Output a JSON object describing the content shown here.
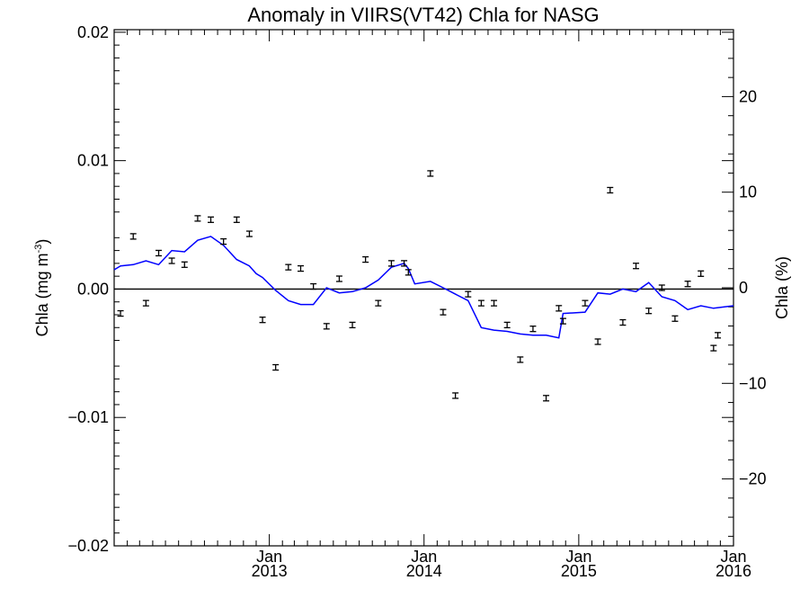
{
  "chart_data": {
    "type": "line",
    "title": "Anomaly in VIIRS(VT42) Chla for NASG",
    "ylabel_left_main": "Chla (mg m",
    "ylabel_left_exp": "-3",
    "ylabel_left_close": ")",
    "ylabel_right": "Chla (%)",
    "x_ticks": [
      {
        "date": "2013-01-01",
        "month": "Jan",
        "year": "2013"
      },
      {
        "date": "2014-01-01",
        "month": "Jan",
        "year": "2014"
      },
      {
        "date": "2015-01-01",
        "month": "Jan",
        "year": "2015"
      },
      {
        "date": "2016-01-01",
        "month": "Jan",
        "year": "2016"
      }
    ],
    "xlim": [
      "2012-01-01",
      "2016-01-01"
    ],
    "ylim_left": [
      -0.02,
      0.0202
    ],
    "ylim_right": [
      -27,
      27
    ],
    "y_ticks_left": [
      {
        "value": 0.02,
        "label": "0.02"
      },
      {
        "value": 0.01,
        "label": "0.01"
      },
      {
        "value": 0.0,
        "label": "0.00"
      },
      {
        "value": -0.01,
        "label": "-0.01"
      },
      {
        "value": -0.02,
        "label": "-0.02"
      }
    ],
    "y_ticks_right": [
      {
        "value": 20,
        "label": "20"
      },
      {
        "value": 10,
        "label": "10"
      },
      {
        "value": 0,
        "label": "0"
      },
      {
        "value": -10,
        "label": "-10"
      },
      {
        "value": -20,
        "label": "-20"
      }
    ],
    "zero_line": true,
    "colors": {
      "line": "#0000ff",
      "points": "#000000",
      "axes": "#000000"
    },
    "series": [
      {
        "role": "monthly anomaly (error-bar markers)",
        "points": [
          {
            "x": "2012-01-16",
            "y": -0.0019
          },
          {
            "x": "2012-02-15",
            "y": 0.0041
          },
          {
            "x": "2012-03-16",
            "y": -0.0011
          },
          {
            "x": "2012-04-15",
            "y": 0.0028
          },
          {
            "x": "2012-05-16",
            "y": 0.0022
          },
          {
            "x": "2012-06-15",
            "y": 0.0019
          },
          {
            "x": "2012-07-16",
            "y": 0.0055
          },
          {
            "x": "2012-08-16",
            "y": 0.0054
          },
          {
            "x": "2012-09-15",
            "y": 0.0037
          },
          {
            "x": "2012-10-16",
            "y": 0.0054
          },
          {
            "x": "2012-11-15",
            "y": 0.0043
          },
          {
            "x": "2012-12-16",
            "y": -0.0024
          },
          {
            "x": "2013-01-16",
            "y": -0.0061
          },
          {
            "x": "2013-02-15",
            "y": 0.0017
          },
          {
            "x": "2013-03-16",
            "y": 0.0016
          },
          {
            "x": "2013-04-15",
            "y": 0.0002
          },
          {
            "x": "2013-05-16",
            "y": -0.0029
          },
          {
            "x": "2013-06-15",
            "y": 0.0008
          },
          {
            "x": "2013-07-16",
            "y": -0.0028
          },
          {
            "x": "2013-08-16",
            "y": 0.0023
          },
          {
            "x": "2013-09-15",
            "y": -0.0011
          },
          {
            "x": "2013-10-16",
            "y": 0.002
          },
          {
            "x": "2013-11-15",
            "y": 0.002
          },
          {
            "x": "2013-11-25",
            "y": 0.0013
          },
          {
            "x": "2014-01-16",
            "y": 0.009
          },
          {
            "x": "2014-02-15",
            "y": -0.0018
          },
          {
            "x": "2014-03-16",
            "y": -0.0083
          },
          {
            "x": "2014-04-15",
            "y": -0.0004
          },
          {
            "x": "2014-05-16",
            "y": -0.0011
          },
          {
            "x": "2014-06-15",
            "y": -0.0011
          },
          {
            "x": "2014-07-16",
            "y": -0.0028
          },
          {
            "x": "2014-08-16",
            "y": -0.0055
          },
          {
            "x": "2014-09-15",
            "y": -0.0031
          },
          {
            "x": "2014-10-16",
            "y": -0.0085
          },
          {
            "x": "2014-11-15",
            "y": -0.0015
          },
          {
            "x": "2014-11-25",
            "y": -0.0025
          },
          {
            "x": "2015-01-16",
            "y": -0.0011
          },
          {
            "x": "2015-02-15",
            "y": -0.0041
          },
          {
            "x": "2015-03-16",
            "y": 0.0077
          },
          {
            "x": "2015-04-15",
            "y": -0.0026
          },
          {
            "x": "2015-05-16",
            "y": 0.0018
          },
          {
            "x": "2015-06-15",
            "y": -0.0017
          },
          {
            "x": "2015-07-16",
            "y": 0.0001
          },
          {
            "x": "2015-08-16",
            "y": -0.0023
          },
          {
            "x": "2015-09-15",
            "y": 0.0004
          },
          {
            "x": "2015-10-16",
            "y": 0.0012
          },
          {
            "x": "2015-11-15",
            "y": -0.0046
          },
          {
            "x": "2015-11-25",
            "y": -0.0036
          }
        ]
      },
      {
        "role": "running mean (blue line)",
        "points": [
          {
            "x": "2012-01-01",
            "y": 0.0015
          },
          {
            "x": "2012-01-16",
            "y": 0.0018
          },
          {
            "x": "2012-02-15",
            "y": 0.0019
          },
          {
            "x": "2012-03-16",
            "y": 0.0022
          },
          {
            "x": "2012-04-15",
            "y": 0.0019
          },
          {
            "x": "2012-05-16",
            "y": 0.003
          },
          {
            "x": "2012-06-15",
            "y": 0.0029
          },
          {
            "x": "2012-07-16",
            "y": 0.0038
          },
          {
            "x": "2012-08-16",
            "y": 0.0041
          },
          {
            "x": "2012-09-15",
            "y": 0.0034
          },
          {
            "x": "2012-10-16",
            "y": 0.0023
          },
          {
            "x": "2012-11-15",
            "y": 0.0018
          },
          {
            "x": "2012-12-01",
            "y": 0.0012
          },
          {
            "x": "2012-12-16",
            "y": 0.0009
          },
          {
            "x": "2013-01-16",
            "y": -0.0001
          },
          {
            "x": "2013-02-15",
            "y": -0.0009
          },
          {
            "x": "2013-03-16",
            "y": -0.0012
          },
          {
            "x": "2013-04-15",
            "y": -0.0012
          },
          {
            "x": "2013-05-16",
            "y": 0.0001
          },
          {
            "x": "2013-06-15",
            "y": -0.0003
          },
          {
            "x": "2013-07-16",
            "y": -0.0002
          },
          {
            "x": "2013-08-16",
            "y": 0.0001
          },
          {
            "x": "2013-09-15",
            "y": 0.0007
          },
          {
            "x": "2013-10-16",
            "y": 0.0017
          },
          {
            "x": "2013-11-15",
            "y": 0.002
          },
          {
            "x": "2013-11-25",
            "y": 0.0016
          },
          {
            "x": "2013-12-10",
            "y": 0.0004
          },
          {
            "x": "2014-01-16",
            "y": 0.0006
          },
          {
            "x": "2014-02-15",
            "y": 0.0001
          },
          {
            "x": "2014-03-16",
            "y": -0.0004
          },
          {
            "x": "2014-04-15",
            "y": -0.0009
          },
          {
            "x": "2014-05-16",
            "y": -0.003
          },
          {
            "x": "2014-06-15",
            "y": -0.0032
          },
          {
            "x": "2014-07-16",
            "y": -0.0033
          },
          {
            "x": "2014-08-16",
            "y": -0.0035
          },
          {
            "x": "2014-09-15",
            "y": -0.0036
          },
          {
            "x": "2014-10-16",
            "y": -0.0036
          },
          {
            "x": "2014-11-15",
            "y": -0.0038
          },
          {
            "x": "2014-11-25",
            "y": -0.0019
          },
          {
            "x": "2015-01-16",
            "y": -0.0018
          },
          {
            "x": "2015-02-15",
            "y": -0.0003
          },
          {
            "x": "2015-03-16",
            "y": -0.0004
          },
          {
            "x": "2015-04-15",
            "y": 0.0
          },
          {
            "x": "2015-05-16",
            "y": -0.0002
          },
          {
            "x": "2015-06-15",
            "y": 0.0005
          },
          {
            "x": "2015-07-16",
            "y": -0.0006
          },
          {
            "x": "2015-08-16",
            "y": -0.0009
          },
          {
            "x": "2015-09-15",
            "y": -0.0016
          },
          {
            "x": "2015-10-16",
            "y": -0.0013
          },
          {
            "x": "2015-11-15",
            "y": -0.0015
          },
          {
            "x": "2016-01-01",
            "y": -0.0013
          }
        ]
      }
    ]
  }
}
